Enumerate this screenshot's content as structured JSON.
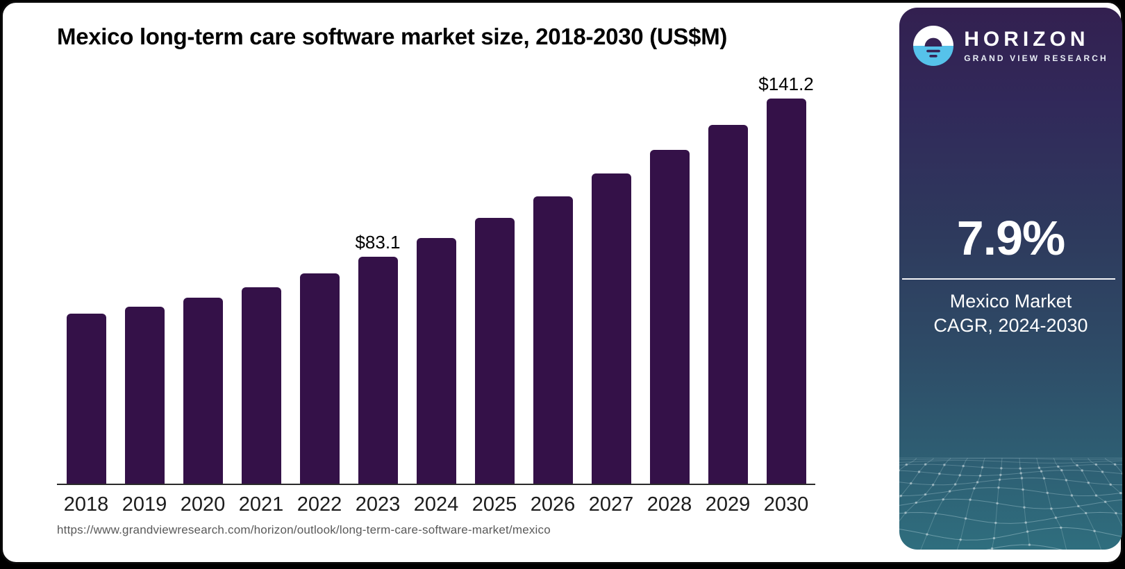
{
  "chart": {
    "title": "Mexico long-term care software market size, 2018-2030 (US$M)"
  },
  "source_url": "https://www.grandviewresearch.com/horizon/outlook/long-term-care-software-market/mexico",
  "chart_data": {
    "type": "bar",
    "title": "Mexico long-term care software market size, 2018-2030 (US$M)",
    "categories": [
      "2018",
      "2019",
      "2020",
      "2021",
      "2022",
      "2023",
      "2024",
      "2025",
      "2026",
      "2027",
      "2028",
      "2029",
      "2030"
    ],
    "values": [
      62.3,
      64.8,
      68.1,
      72.0,
      77.1,
      83.1,
      90.0,
      97.4,
      105.3,
      113.8,
      122.5,
      131.6,
      141.2
    ],
    "data_labels": [
      {
        "index": 5,
        "text": "$83.1"
      },
      {
        "index": 12,
        "text": "$141.2"
      }
    ],
    "xlabel": "",
    "ylabel": "",
    "ylim": [
      0,
      150
    ],
    "grid": false,
    "legend": "none",
    "bar_color": "#341148"
  },
  "sidebar": {
    "brand_name": "HORIZON",
    "brand_tagline": "GRAND VIEW RESEARCH",
    "stat_value": "7.9%",
    "stat_label_line1": "Mexico Market",
    "stat_label_line2": "CAGR, 2024-2030"
  },
  "colors": {
    "bar": "#341148",
    "logo_blue": "#56c2ea",
    "logo_dark": "#362254",
    "panel_top": "#332050",
    "panel_mid": "#2e3a5d",
    "panel_teal": "#2f6e7e",
    "mesh_line": "#a8c9d2"
  }
}
